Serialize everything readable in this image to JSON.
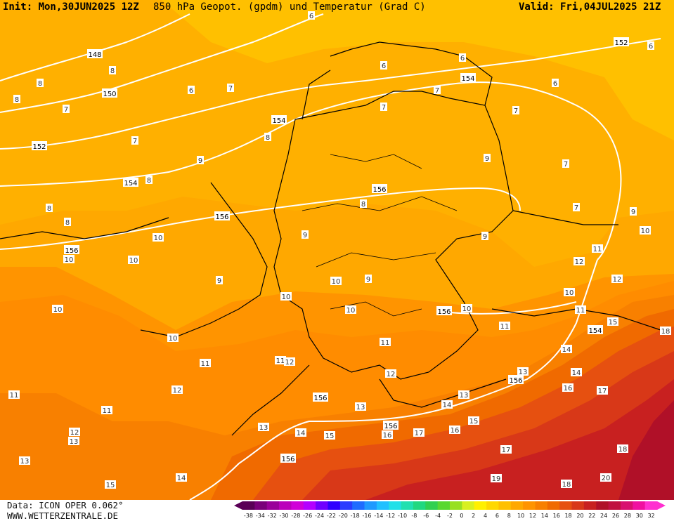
{
  "header": {
    "init": "Init: Mon,30JUN2025 12Z",
    "title": "850 hPa Geopot. (gpdm) und Temperatur (Grad C)",
    "valid": "Valid: Fri,04JUL2025 21Z"
  },
  "footer": {
    "data": "Data: ICON OPER 0.062°",
    "site": "WWW.WETTERZENTRALE.DE"
  },
  "legend": {
    "ticks": [
      "-38",
      "-34",
      "-32",
      "-30",
      "-28",
      "-26",
      "-24",
      "-22",
      "-20",
      "-18",
      "-16",
      "-14",
      "-12",
      "-10",
      "-8",
      "-6",
      "-4",
      "-2",
      "0",
      "2",
      "4",
      "6",
      "8",
      "10",
      "12",
      "14",
      "16",
      "18",
      "20",
      "22",
      "24",
      "26",
      "28",
      "30",
      "32"
    ],
    "colors": [
      "#5a0057",
      "#7a007a",
      "#9a009a",
      "#bb00bb",
      "#d000d8",
      "#b400ff",
      "#7000ff",
      "#3000ff",
      "#2a3cff",
      "#1e6cff",
      "#1f9aff",
      "#20c0ff",
      "#20e0e8",
      "#20e0b0",
      "#20d880",
      "#30d050",
      "#58d830",
      "#98e020",
      "#d8f020",
      "#fff000",
      "#ffd800",
      "#ffc000",
      "#ffa800",
      "#ff9400",
      "#f88000",
      "#f06a00",
      "#e65010",
      "#d83818",
      "#c82020",
      "#b01028",
      "#c01040",
      "#d81070",
      "#f010a0",
      "#ff30d0"
    ]
  },
  "map": {
    "geopotential_labels": [
      "148",
      "150",
      "152",
      "152",
      "154",
      "154",
      "154",
      "154",
      "156",
      "156",
      "156",
      "156",
      "156",
      "156",
      "156",
      "156"
    ],
    "temperature_labels": [
      "6",
      "6",
      "6",
      "6",
      "6",
      "6",
      "7",
      "7",
      "7",
      "7",
      "7",
      "7",
      "7",
      "7",
      "8",
      "8",
      "8",
      "8",
      "8",
      "8",
      "8",
      "8",
      "9",
      "9",
      "9",
      "9",
      "9",
      "9",
      "9",
      "10",
      "10",
      "10",
      "10",
      "10",
      "10",
      "10",
      "10",
      "10",
      "10",
      "10",
      "11",
      "11",
      "11",
      "11",
      "11",
      "11",
      "11",
      "11",
      "12",
      "12",
      "12",
      "12",
      "12",
      "12",
      "13",
      "13",
      "13",
      "13",
      "13",
      "13",
      "14",
      "14",
      "14",
      "14",
      "14",
      "15",
      "15",
      "15",
      "15",
      "16",
      "16",
      "16",
      "17",
      "17",
      "17",
      "18",
      "18",
      "18",
      "19",
      "20"
    ],
    "colors": {
      "t6": "#ffc000",
      "t8": "#ffa800",
      "t10": "#ff9400",
      "t12": "#f88000",
      "t14": "#f06a00",
      "t16": "#e65010",
      "t18": "#d83818",
      "t20": "#c82020",
      "t22": "#b01028",
      "geopot_line": "#ffffff",
      "border_line": "#000000"
    }
  }
}
